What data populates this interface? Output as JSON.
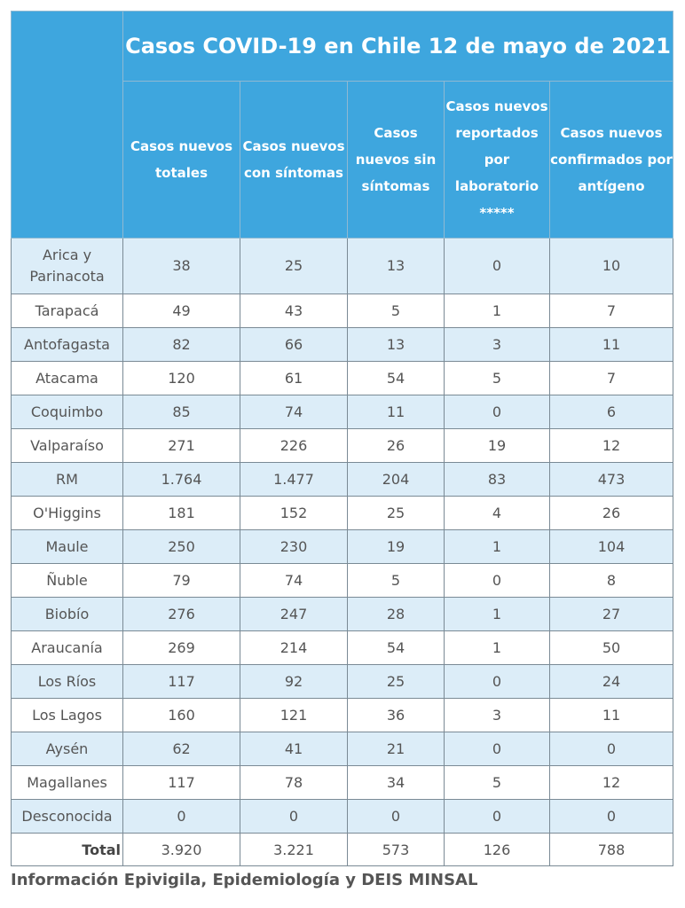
{
  "title": "Casos COVID-19 en Chile 12 de mayo de 2021",
  "columns": [
    "Casos nuevos totales",
    "Casos nuevos con síntomas",
    "Casos nuevos sin síntomas",
    "Casos nuevos reportados por laboratorio *****",
    "Casos nuevos confirmados por antígeno"
  ],
  "rows": [
    {
      "region": "Arica y Parinacota",
      "values": [
        "38",
        "25",
        "13",
        "0",
        "10"
      ]
    },
    {
      "region": "Tarapacá",
      "values": [
        "49",
        "43",
        "5",
        "1",
        "7"
      ]
    },
    {
      "region": "Antofagasta",
      "values": [
        "82",
        "66",
        "13",
        "3",
        "11"
      ]
    },
    {
      "region": "Atacama",
      "values": [
        "120",
        "61",
        "54",
        "5",
        "7"
      ]
    },
    {
      "region": "Coquimbo",
      "values": [
        "85",
        "74",
        "11",
        "0",
        "6"
      ]
    },
    {
      "region": "Valparaíso",
      "values": [
        "271",
        "226",
        "26",
        "19",
        "12"
      ]
    },
    {
      "region": "RM",
      "values": [
        "1.764",
        "1.477",
        "204",
        "83",
        "473"
      ]
    },
    {
      "region": "O'Higgins",
      "values": [
        "181",
        "152",
        "25",
        "4",
        "26"
      ]
    },
    {
      "region": "Maule",
      "values": [
        "250",
        "230",
        "19",
        "1",
        "104"
      ]
    },
    {
      "region": "Ñuble",
      "values": [
        "79",
        "74",
        "5",
        "0",
        "8"
      ]
    },
    {
      "region": "Biobío",
      "values": [
        "276",
        "247",
        "28",
        "1",
        "27"
      ]
    },
    {
      "region": "Araucanía",
      "values": [
        "269",
        "214",
        "54",
        "1",
        "50"
      ]
    },
    {
      "region": "Los Ríos",
      "values": [
        "117",
        "92",
        "25",
        "0",
        "24"
      ]
    },
    {
      "region": "Los Lagos",
      "values": [
        "160",
        "121",
        "36",
        "3",
        "11"
      ]
    },
    {
      "region": "Aysén",
      "values": [
        "62",
        "41",
        "21",
        "0",
        "0"
      ]
    },
    {
      "region": "Magallanes",
      "values": [
        "117",
        "78",
        "34",
        "5",
        "12"
      ]
    },
    {
      "region": "Desconocida",
      "values": [
        "0",
        "0",
        "0",
        "0",
        "0"
      ]
    }
  ],
  "total": {
    "label": "Total",
    "values": [
      "3.920",
      "3.221",
      "573",
      "126",
      "788"
    ]
  },
  "footer": "Información Epivigila, Epidemiología y DEIS MINSAL"
}
